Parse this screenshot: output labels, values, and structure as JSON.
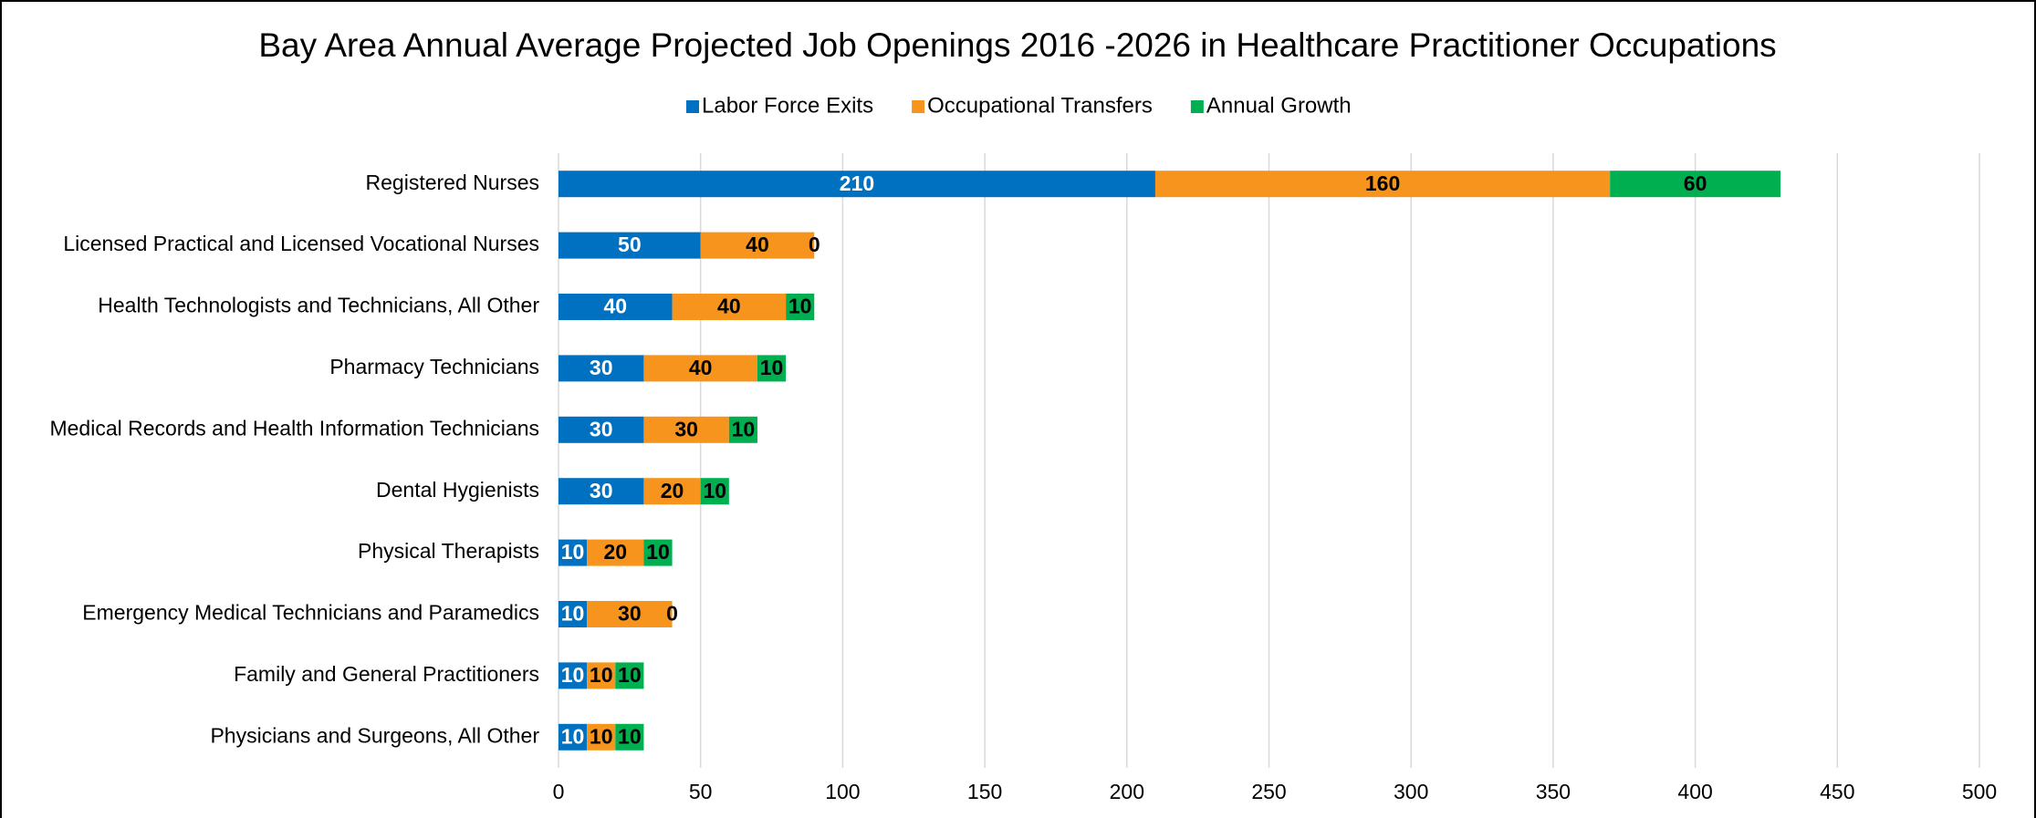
{
  "chart_data": {
    "type": "bar",
    "orientation": "horizontal",
    "stacked": true,
    "title": "Bay Area Annual Average Projected Job Openings 2016 -2026 in Healthcare Practitioner Occupations",
    "categories": [
      "Registered Nurses",
      "Licensed Practical and Licensed Vocational Nurses",
      "Health Technologists and Technicians, All Other",
      "Pharmacy Technicians",
      "Medical Records and Health Information Technicians",
      "Dental Hygienists",
      "Physical Therapists",
      "Emergency Medical Technicians and Paramedics",
      "Family and General Practitioners",
      "Physicians and Surgeons, All Other"
    ],
    "series": [
      {
        "name": "Labor Force Exits",
        "color": "#0070c0",
        "label_color": "#ffffff",
        "values": [
          210,
          50,
          40,
          30,
          30,
          30,
          10,
          10,
          10,
          10
        ]
      },
      {
        "name": "Occupational Transfers",
        "color": "#f7941d",
        "label_color": "#000000",
        "values": [
          160,
          40,
          40,
          40,
          30,
          20,
          20,
          30,
          10,
          10
        ]
      },
      {
        "name": "Annual Growth",
        "color": "#00b050",
        "label_color": "#000000",
        "values": [
          60,
          0,
          10,
          10,
          10,
          10,
          10,
          0,
          10,
          10
        ]
      }
    ],
    "xlim": [
      0,
      500
    ],
    "xticks": [
      0,
      50,
      100,
      150,
      200,
      250,
      300,
      350,
      400,
      450,
      500
    ],
    "grid": true,
    "legend": "top"
  }
}
